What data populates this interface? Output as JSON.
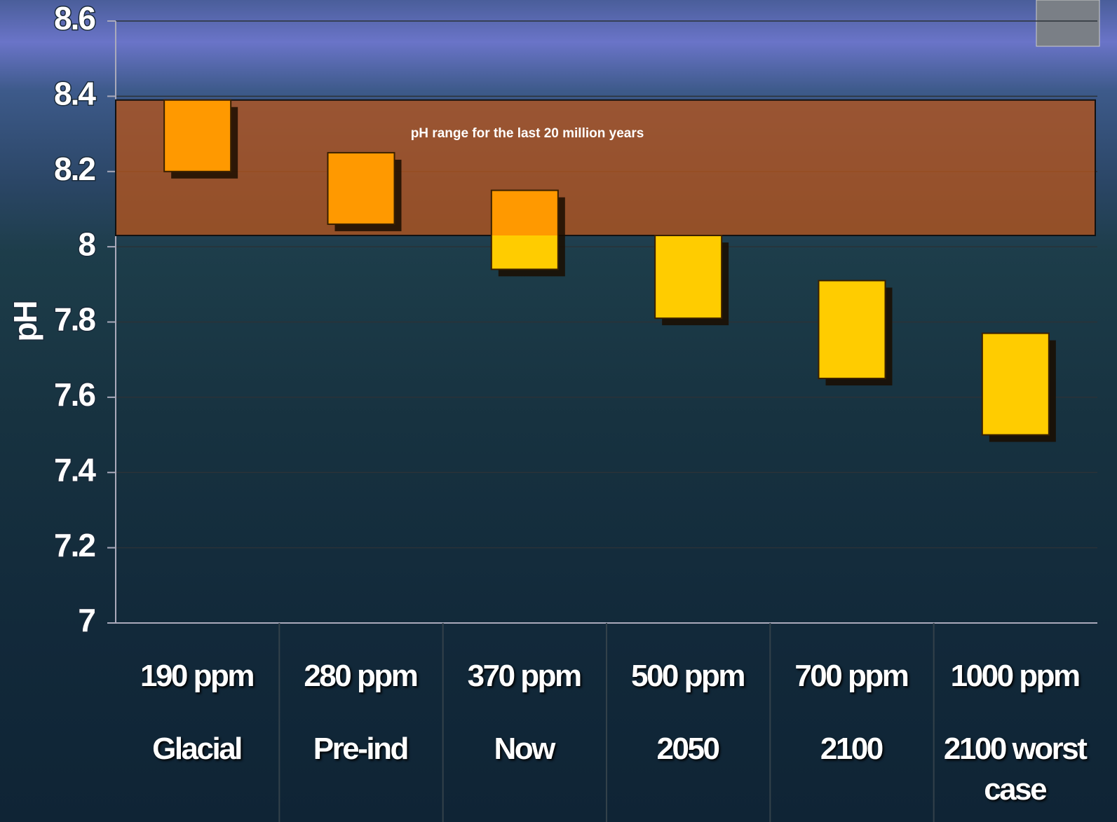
{
  "chart_data": {
    "type": "floating-bar",
    "y_label": "pH",
    "categories": [
      "190 ppm",
      "280 ppm",
      "370 ppm",
      "500 ppm",
      "700 ppm",
      "1000 ppm"
    ],
    "periods": [
      "Glacial",
      "Pre-ind",
      "Now",
      "2050",
      "2100",
      "2100 worst case"
    ],
    "low": [
      8.2,
      8.06,
      7.94,
      7.81,
      7.65,
      7.5
    ],
    "high": [
      8.39,
      8.25,
      8.15,
      8.03,
      7.91,
      7.77
    ],
    "band": [
      8.03,
      8.39
    ],
    "band_label": "pH range for the last 20 million years",
    "band_color": "#b5551c",
    "in_band_color": "#ff9900",
    "out_band_color": "#ffcc00",
    "ylim": [
      7,
      8.6
    ],
    "yticks": [
      7,
      7.2,
      7.4,
      7.6,
      7.8,
      8,
      8.2,
      8.4,
      8.6
    ],
    "grid": true
  }
}
